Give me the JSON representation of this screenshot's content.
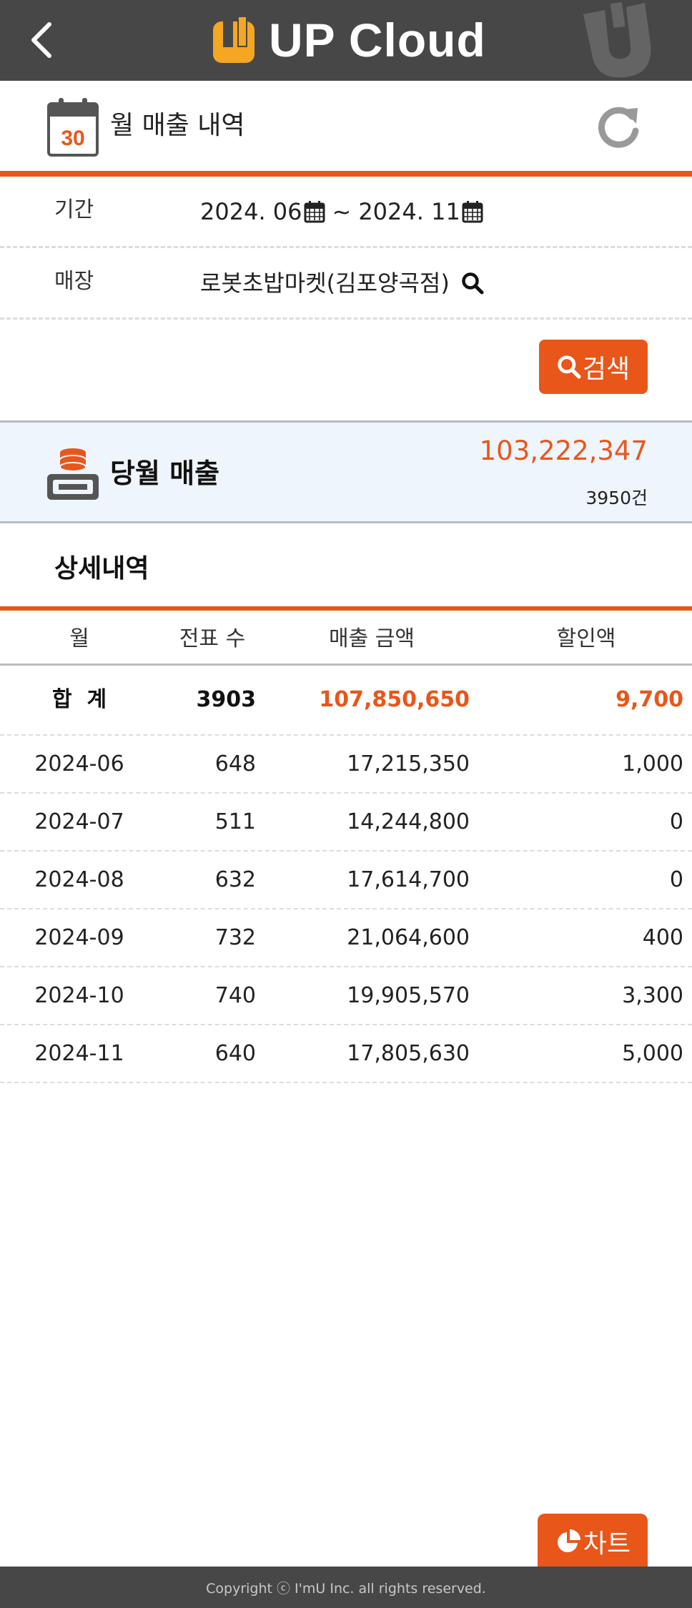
{
  "header": {
    "app_name": "UP Cloud",
    "colors": {
      "bar": "#474747",
      "logo_accent": "#f5a623"
    }
  },
  "title_bar": {
    "title": "월 매출 내역",
    "calendar_day": "30",
    "icons": {
      "left": "calendar-icon",
      "right": "refresh-icon"
    }
  },
  "filters": {
    "period_label": "기간",
    "period_start": "2024. 06",
    "period_sep": "~",
    "period_end": "2024. 11",
    "store_label": "매장",
    "store_value": "로봇초밥마켓(김포양곡점)",
    "search_button": "검색"
  },
  "monthly_summary": {
    "label": "당월 매출",
    "amount": "103,222,347",
    "count": "3950건"
  },
  "detail": {
    "section_title": "상세내역",
    "columns": [
      "월",
      "전표 수",
      "매출 금액",
      "할인액"
    ],
    "total": {
      "label": "합  계",
      "count": "3903",
      "amount": "107,850,650",
      "discount": "9,700"
    },
    "rows": [
      {
        "month": "2024-06",
        "count": "648",
        "amount": "17,215,350",
        "discount": "1,000"
      },
      {
        "month": "2024-07",
        "count": "511",
        "amount": "14,244,800",
        "discount": "0"
      },
      {
        "month": "2024-08",
        "count": "632",
        "amount": "17,614,700",
        "discount": "0"
      },
      {
        "month": "2024-09",
        "count": "732",
        "amount": "21,064,600",
        "discount": "400"
      },
      {
        "month": "2024-10",
        "count": "740",
        "amount": "19,905,570",
        "discount": "3,300"
      },
      {
        "month": "2024-11",
        "count": "640",
        "amount": "17,805,630",
        "discount": "5,000"
      }
    ]
  },
  "chart_button": "차트",
  "footer": {
    "copyright": "Copyright ⓒ I'mU Inc. all rights reserved."
  },
  "theme": {
    "accent": "#e8561a",
    "summary_bg": "#eef5fc"
  }
}
